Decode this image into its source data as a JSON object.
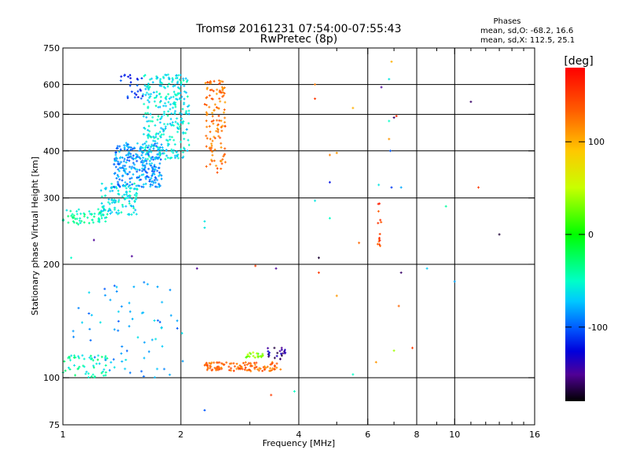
{
  "chart_data": {
    "type": "scatter",
    "title": "Tromsø 20161231 07:54:00-07:55:43",
    "subtitle": "RwPretec (8p)",
    "xlabel": "Frequency [MHz]",
    "ylabel": "Stationary phase Virtual Height [km]",
    "x_scale": "log",
    "y_scale": "log",
    "xlim": [
      1,
      16
    ],
    "ylim": [
      75,
      750
    ],
    "x_ticks": [
      1,
      2,
      4,
      6,
      8,
      10,
      16
    ],
    "x_tick_labels": [
      "1",
      "2",
      "4",
      "6",
      "8",
      "10",
      "16"
    ],
    "x_minor_ticks": [
      3,
      5,
      7,
      9,
      11,
      12,
      13,
      14,
      15
    ],
    "y_ticks": [
      75,
      100,
      200,
      300,
      400,
      500,
      600,
      750
    ],
    "y_tick_labels": [
      "75",
      "100",
      "200",
      "300",
      "400",
      "500",
      "600",
      "750"
    ],
    "x_gridlines": [
      2,
      4,
      6,
      8,
      10
    ],
    "y_gridlines": [
      100,
      200,
      300,
      400,
      500,
      600
    ],
    "stats": {
      "title": "Phases",
      "line1": "mean, sd,O: -68.2, 16.6",
      "line2": "mean, sd,X: 112.5, 25.1"
    },
    "colorbar": {
      "label": "[deg]",
      "min": -180,
      "max": 180,
      "ticks": [
        100,
        0,
        -100
      ],
      "tick_labels": [
        "100",
        "0",
        "-100"
      ]
    },
    "clusters": [
      {
        "name": "low-F-layer",
        "fmin": 1.0,
        "fmax": 1.3,
        "hmin": 255,
        "hmax": 280,
        "phase": -45,
        "count": 60
      },
      {
        "name": "O-trace-low",
        "fmin": 1.25,
        "fmax": 1.55,
        "hmin": 270,
        "hmax": 330,
        "phase": -60,
        "count": 110
      },
      {
        "name": "O-trace-mid",
        "fmin": 1.35,
        "fmax": 1.8,
        "hmin": 320,
        "hmax": 420,
        "phase": -85,
        "count": 260
      },
      {
        "name": "O-trace-high",
        "fmin": 1.6,
        "fmax": 2.1,
        "hmin": 380,
        "hmax": 640,
        "phase": -60,
        "count": 300
      },
      {
        "name": "O-trace-top",
        "fmin": 1.4,
        "fmax": 1.6,
        "hmin": 550,
        "hmax": 640,
        "phase": -110,
        "count": 25
      },
      {
        "name": "X-trace",
        "fmin": 2.3,
        "fmax": 2.6,
        "hmin": 350,
        "hmax": 620,
        "phase": 125,
        "count": 120
      },
      {
        "name": "E-layer-low",
        "fmin": 1.0,
        "fmax": 1.3,
        "hmin": 100,
        "hmax": 115,
        "phase": -45,
        "count": 55
      },
      {
        "name": "E-sparse-low",
        "fmin": 1.05,
        "fmax": 2.05,
        "hmin": 100,
        "hmax": 180,
        "phase": -80,
        "count": 70
      },
      {
        "name": "Es-orange",
        "fmin": 2.3,
        "fmax": 3.6,
        "hmin": 104,
        "hmax": 110,
        "phase": 130,
        "count": 110
      },
      {
        "name": "Es-green",
        "fmin": 2.9,
        "fmax": 3.25,
        "hmin": 113,
        "hmax": 117,
        "phase": 30,
        "count": 22
      },
      {
        "name": "Es-purple",
        "fmin": 3.3,
        "fmax": 3.7,
        "hmin": 112,
        "hmax": 120,
        "phase": -150,
        "count": 22
      },
      {
        "name": "column-6.4",
        "fmin": 6.35,
        "fmax": 6.5,
        "hmin": 215,
        "hmax": 290,
        "phase": 150,
        "count": 14
      }
    ],
    "isolated_points": [
      {
        "x": 6.9,
        "y": 690,
        "phase": 100
      },
      {
        "x": 6.8,
        "y": 620,
        "phase": -60
      },
      {
        "x": 6.5,
        "y": 590,
        "phase": -150
      },
      {
        "x": 4.4,
        "y": 600,
        "phase": 120
      },
      {
        "x": 4.4,
        "y": 550,
        "phase": 150
      },
      {
        "x": 5.5,
        "y": 520,
        "phase": 100
      },
      {
        "x": 7.0,
        "y": 490,
        "phase": -160
      },
      {
        "x": 7.1,
        "y": 495,
        "phase": 160
      },
      {
        "x": 6.8,
        "y": 480,
        "phase": -50
      },
      {
        "x": 11.0,
        "y": 540,
        "phase": -160
      },
      {
        "x": 6.8,
        "y": 430,
        "phase": 110
      },
      {
        "x": 6.85,
        "y": 400,
        "phase": -100
      },
      {
        "x": 4.8,
        "y": 390,
        "phase": 120
      },
      {
        "x": 5.0,
        "y": 395,
        "phase": 110
      },
      {
        "x": 4.8,
        "y": 330,
        "phase": -120
      },
      {
        "x": 6.4,
        "y": 325,
        "phase": -60
      },
      {
        "x": 6.9,
        "y": 320,
        "phase": -110
      },
      {
        "x": 7.3,
        "y": 320,
        "phase": -80
      },
      {
        "x": 11.5,
        "y": 320,
        "phase": 150
      },
      {
        "x": 4.4,
        "y": 295,
        "phase": -60
      },
      {
        "x": 9.5,
        "y": 285,
        "phase": -40
      },
      {
        "x": 4.8,
        "y": 265,
        "phase": -50
      },
      {
        "x": 13.0,
        "y": 240,
        "phase": -170
      },
      {
        "x": 5.7,
        "y": 228,
        "phase": 130
      },
      {
        "x": 4.5,
        "y": 208,
        "phase": -170
      },
      {
        "x": 4.5,
        "y": 190,
        "phase": 150
      },
      {
        "x": 7.3,
        "y": 190,
        "phase": -160
      },
      {
        "x": 8.5,
        "y": 195,
        "phase": -70
      },
      {
        "x": 10.0,
        "y": 180,
        "phase": -80
      },
      {
        "x": 5.0,
        "y": 165,
        "phase": 110
      },
      {
        "x": 7.2,
        "y": 155,
        "phase": 130
      },
      {
        "x": 7.8,
        "y": 120,
        "phase": 150
      },
      {
        "x": 7.0,
        "y": 118,
        "phase": 40
      },
      {
        "x": 6.3,
        "y": 110,
        "phase": 110
      },
      {
        "x": 5.5,
        "y": 102,
        "phase": -50
      },
      {
        "x": 3.9,
        "y": 92,
        "phase": -50
      },
      {
        "x": 3.4,
        "y": 90,
        "phase": 150
      },
      {
        "x": 2.3,
        "y": 82,
        "phase": -100
      },
      {
        "x": 2.3,
        "y": 260,
        "phase": -60
      },
      {
        "x": 2.3,
        "y": 250,
        "phase": -60
      },
      {
        "x": 2.2,
        "y": 195,
        "phase": -150
      },
      {
        "x": 1.5,
        "y": 210,
        "phase": -150
      },
      {
        "x": 1.2,
        "y": 232,
        "phase": -150
      },
      {
        "x": 1.05,
        "y": 208,
        "phase": -50
      },
      {
        "x": 3.1,
        "y": 198,
        "phase": 150
      },
      {
        "x": 3.5,
        "y": 195,
        "phase": -150
      }
    ]
  }
}
